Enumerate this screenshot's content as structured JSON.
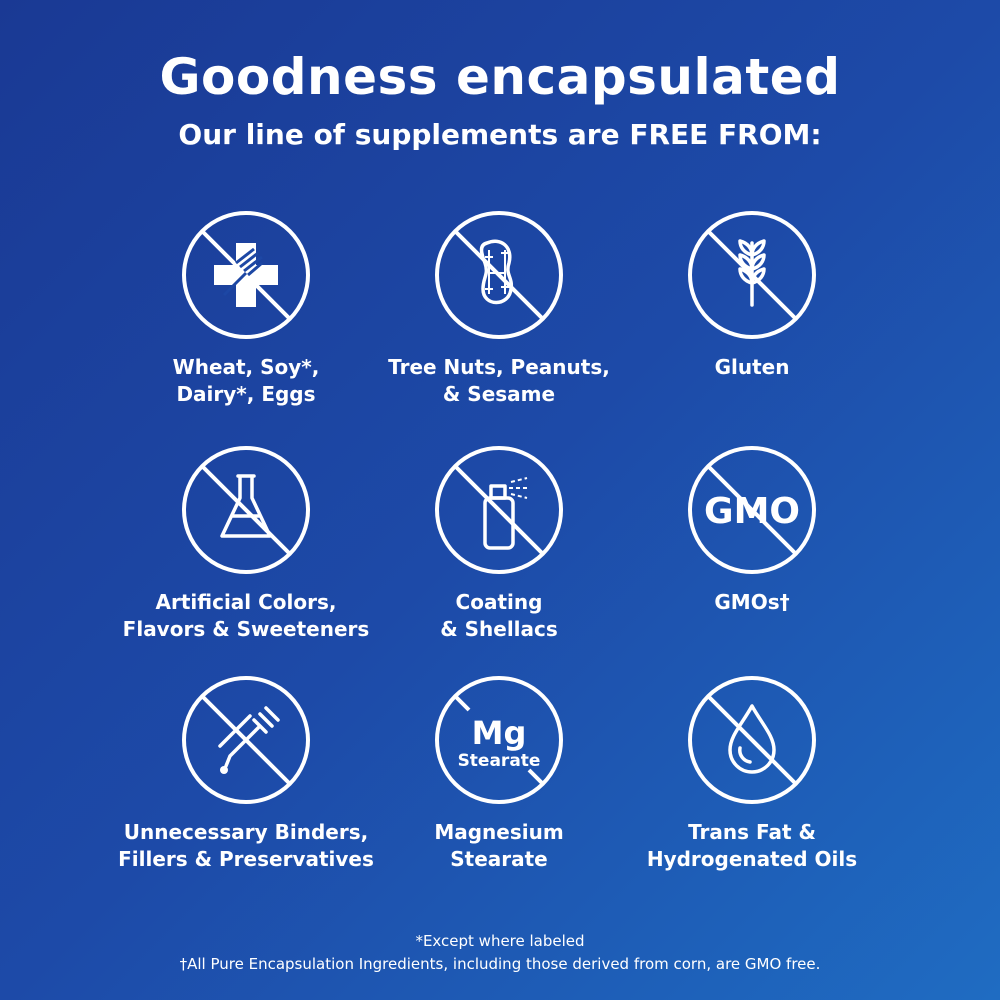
{
  "header": {
    "title": "Goodness encapsulated",
    "subtitle": "Our line of supplements are FREE FROM:"
  },
  "items": [
    {
      "icon": "allergen-cross-fork-icon",
      "label": "Wheat, Soy*,\nDairy*, Eggs"
    },
    {
      "icon": "peanut-icon",
      "label": "Tree Nuts, Peanuts,\n& Sesame"
    },
    {
      "icon": "wheat-icon",
      "label": "Gluten"
    },
    {
      "icon": "flask-icon",
      "label": "Artificial Colors,\nFlavors & Sweeteners"
    },
    {
      "icon": "spray-can-icon",
      "label": "Coating\n& Shellacs"
    },
    {
      "icon": "gmo-icon",
      "icon_text": "GMO",
      "label": "GMOs†"
    },
    {
      "icon": "dropper-icon",
      "label": "Unnecessary Binders,\nFillers & Preservatives"
    },
    {
      "icon": "mg-stearate-icon",
      "icon_text": "Mg",
      "icon_subtext": "Stearate",
      "label": "Magnesium\nStearate"
    },
    {
      "icon": "oil-drop-icon",
      "label": "Trans Fat &\nHydrogenated Oils"
    }
  ],
  "footer": {
    "note1": "*Except where labeled",
    "note2": "†All Pure Encapsulation Ingredients, including those derived from corn, are GMO free."
  },
  "colors": {
    "bg_start": "#1a3994",
    "bg_end": "#1f6cc2",
    "fg": "#ffffff"
  }
}
